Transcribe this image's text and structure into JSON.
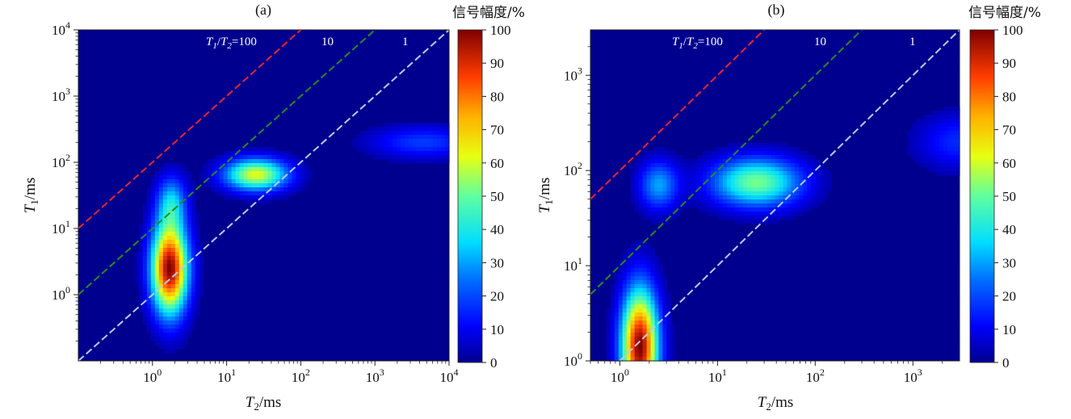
{
  "figure": {
    "panels": [
      {
        "panel_label": "(a)",
        "colorbar_title": "信号幅度/%",
        "xlabel_main": "T",
        "xlabel_sub": "2",
        "xlabel_unit": "/ms",
        "ylabel_main": "T",
        "ylabel_sub": "1",
        "ylabel_unit": "/ms",
        "ratio_label": {
          "t1": "T",
          "s1": "1",
          "slash": "/",
          "t2": "T",
          "s2": "2",
          "eq": "=100"
        },
        "ratio_label_10": "10",
        "ratio_label_1": "1"
      },
      {
        "panel_label": "(b)",
        "colorbar_title": "信号幅度/%",
        "xlabel_main": "T",
        "xlabel_sub": "2",
        "xlabel_unit": "/ms",
        "ylabel_main": "T",
        "ylabel_sub": "1",
        "ylabel_unit": "/ms",
        "ratio_label": {
          "t1": "T",
          "s1": "1",
          "slash": "/",
          "t2": "T",
          "s2": "2",
          "eq": "=100"
        },
        "ratio_label_10": "10",
        "ratio_label_1": "1"
      }
    ]
  },
  "colors": {
    "background": "#00008f",
    "ratio_100": "#e8262b",
    "ratio_10": "#2a8a22",
    "ratio_1": "#b8cbe6"
  },
  "chart_data": [
    {
      "type": "heatmap",
      "x_scale": "log",
      "y_scale": "log",
      "xlim": [
        0.1,
        10000
      ],
      "ylim": [
        0.1,
        10000
      ],
      "xticks": [
        {
          "base": "10",
          "exp": "0"
        },
        {
          "base": "10",
          "exp": "1"
        },
        {
          "base": "10",
          "exp": "2"
        },
        {
          "base": "10",
          "exp": "3"
        },
        {
          "base": "10",
          "exp": "4"
        }
      ],
      "xtick_values": [
        1,
        10,
        100,
        1000,
        10000
      ],
      "yticks": [
        {
          "base": "10",
          "exp": "0"
        },
        {
          "base": "10",
          "exp": "1"
        },
        {
          "base": "10",
          "exp": "2"
        },
        {
          "base": "10",
          "exp": "3"
        },
        {
          "base": "10",
          "exp": "4"
        }
      ],
      "ytick_values": [
        1,
        10,
        100,
        1000,
        10000
      ],
      "colorbar": {
        "min": 0,
        "max": 100,
        "ticks": [
          "0",
          "10",
          "20",
          "30",
          "40",
          "50",
          "60",
          "70",
          "80",
          "90",
          "100"
        ]
      },
      "reference_lines": [
        {
          "ratio": 100,
          "label": "T1/T2=100"
        },
        {
          "ratio": 10,
          "label": "10"
        },
        {
          "ratio": 1,
          "label": "1"
        }
      ],
      "peaks": [
        {
          "t2": 1.7,
          "t1": 2.5,
          "amplitude": 100,
          "t2_spread": 0.17,
          "t1_spread": 0.48
        },
        {
          "t2": 1.8,
          "t1": 25,
          "amplitude": 30,
          "t2_spread": 0.14,
          "t1_spread": 0.28
        },
        {
          "t2": 25,
          "t1": 65,
          "amplitude": 62,
          "t2_spread": 0.3,
          "t1_spread": 0.17
        },
        {
          "t2": 4500,
          "t1": 200,
          "amplitude": 18,
          "t2_spread": 0.5,
          "t1_spread": 0.17
        }
      ]
    },
    {
      "type": "heatmap",
      "x_scale": "log",
      "y_scale": "log",
      "xlim": [
        0.5,
        3000
      ],
      "ylim": [
        1,
        3000
      ],
      "xticks": [
        {
          "base": "10",
          "exp": "0"
        },
        {
          "base": "10",
          "exp": "1"
        },
        {
          "base": "10",
          "exp": "2"
        },
        {
          "base": "10",
          "exp": "3"
        }
      ],
      "xtick_values": [
        1,
        10,
        100,
        1000
      ],
      "yticks": [
        {
          "base": "10",
          "exp": "0"
        },
        {
          "base": "10",
          "exp": "1"
        },
        {
          "base": "10",
          "exp": "2"
        },
        {
          "base": "10",
          "exp": "3"
        }
      ],
      "ytick_values": [
        1,
        10,
        100,
        1000
      ],
      "colorbar": {
        "min": 0,
        "max": 100,
        "ticks": [
          "0",
          "10",
          "20",
          "30",
          "40",
          "50",
          "60",
          "70",
          "80",
          "90",
          "100"
        ]
      },
      "reference_lines": [
        {
          "ratio": 100,
          "label": "T1/T2=100"
        },
        {
          "ratio": 10,
          "label": "10"
        },
        {
          "ratio": 1,
          "label": "1"
        }
      ],
      "peaks": [
        {
          "t2": 1.6,
          "t1": 1.4,
          "amplitude": 100,
          "t2_spread": 0.13,
          "t1_spread": 0.42
        },
        {
          "t2": 2.5,
          "t1": 70,
          "amplitude": 30,
          "t2_spread": 0.14,
          "t1_spread": 0.18
        },
        {
          "t2": 25,
          "t1": 75,
          "amplitude": 52,
          "t2_spread": 0.32,
          "t1_spread": 0.18
        },
        {
          "t2": 3000,
          "t1": 200,
          "amplitude": 16,
          "t2_spread": 0.3,
          "t1_spread": 0.2
        }
      ]
    }
  ]
}
